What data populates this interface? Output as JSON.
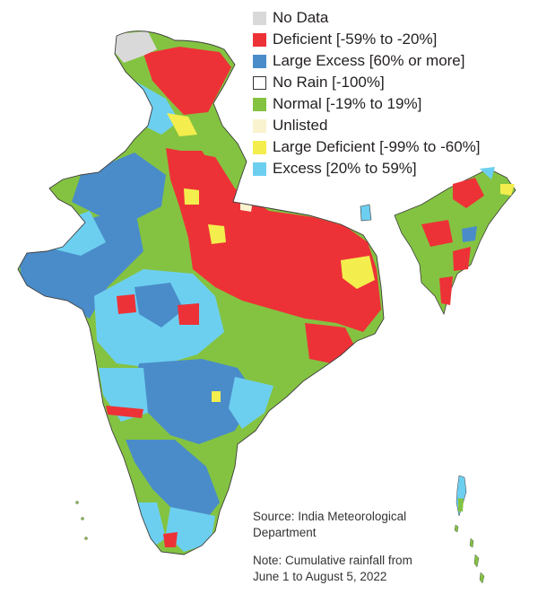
{
  "legend": {
    "items": [
      {
        "label": "No Data",
        "color": "#d9d9d9"
      },
      {
        "label": "Deficient [-59% to -20%]",
        "color": "#ed3237"
      },
      {
        "label": "Large Excess [60% or more]",
        "color": "#4a8cc9"
      },
      {
        "label": "No Rain [-100%]",
        "color": "#ffffff"
      },
      {
        "label": "Normal [-19% to 19%]",
        "color": "#84c341"
      },
      {
        "label": "Unlisted",
        "color": "#faf3cf"
      },
      {
        "label": "Large Deficient [-99% to -60%]",
        "color": "#f3ee4d"
      },
      {
        "label": "Excess [20% to 59%]",
        "color": "#6dcff0"
      }
    ]
  },
  "source": {
    "text": "Source: India Meteorological Department"
  },
  "note": {
    "text": "Note: Cumulative rainfall from June 1 to August 5, 2022"
  }
}
